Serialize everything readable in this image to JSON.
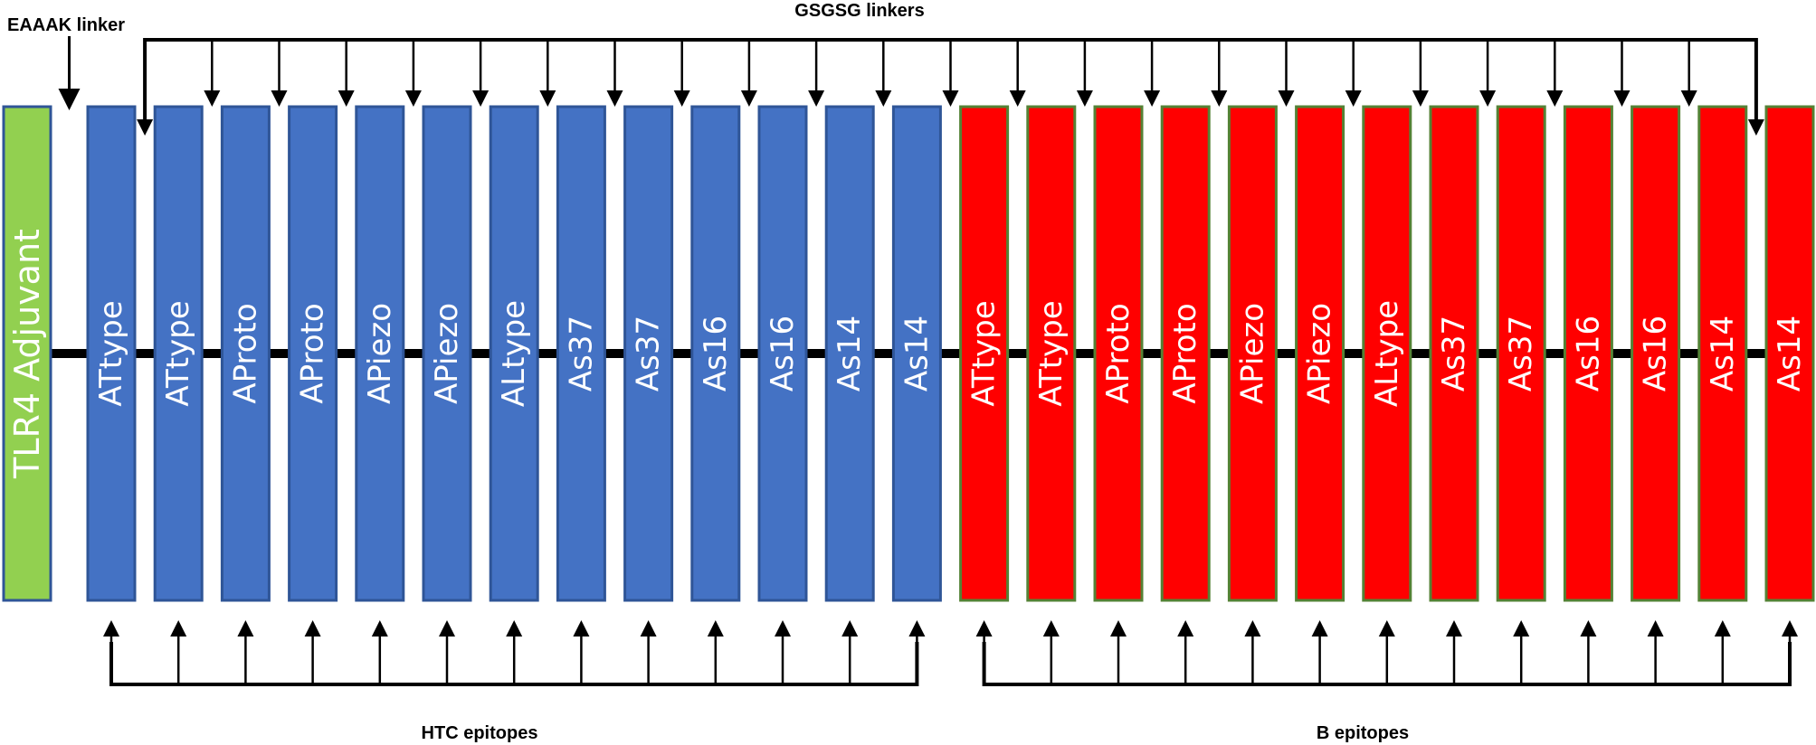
{
  "labels": {
    "eaaak": "EAAAK linker",
    "gsgsg": "GSGSG linkers",
    "htc": "HTC epitopes",
    "b": "B epitopes"
  },
  "adjuvant": {
    "label": "TLR4 Adjuvant",
    "fill": "#92d050",
    "stroke": "#2f5597"
  },
  "htc_segments": [
    "ATtype",
    "ATtype",
    "AProto",
    "AProto",
    "APiezo",
    "APiezo",
    "ALtype",
    "As37",
    "As37",
    "As16",
    "As16",
    "As14",
    "As14"
  ],
  "b_segments": [
    "ATtype",
    "ATtype",
    "AProto",
    "AProto",
    "APiezo",
    "APiezo",
    "ALtype",
    "As37",
    "As37",
    "As16",
    "As16",
    "As14",
    "As14"
  ],
  "colors": {
    "htc_fill": "#4472c4",
    "htc_stroke": "#2f5597",
    "b_fill": "#ff0000",
    "b_stroke": "#548235",
    "line": "#000000"
  }
}
